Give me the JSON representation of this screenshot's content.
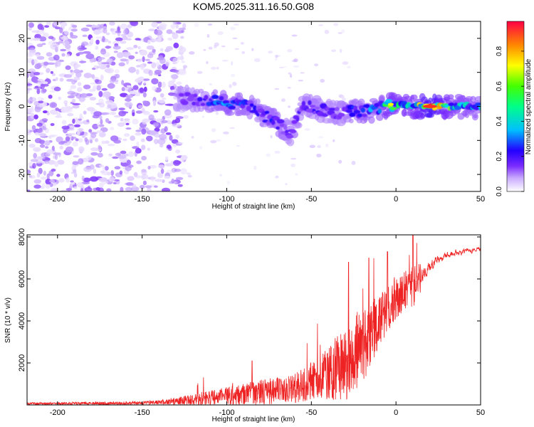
{
  "title": "KOM5.2025.311.16.50.G08",
  "chart_data": [
    {
      "type": "heatmap",
      "name": "spectrogram",
      "xlabel": "Height of straight line (km)",
      "ylabel": "Frequency (Hz)",
      "xlim": [
        -218,
        50
      ],
      "ylim": [
        -25,
        25
      ],
      "xticks": [
        -200,
        -150,
        -100,
        -50,
        0,
        50
      ],
      "yticks": [
        -20,
        -10,
        0,
        10,
        20
      ],
      "colorbar": {
        "label": "Normalized spectral amplitude",
        "range": [
          0,
          0.97
        ],
        "ticks": [
          0.0,
          0.2,
          0.4,
          0.6,
          0.8
        ],
        "tick_labels": [
          "0.0",
          "0.2",
          "0.4",
          "0.6",
          "0.8"
        ],
        "colormap": [
          "#ffffff",
          "#b58cff",
          "#7a2bff",
          "#2200ff",
          "#00d2ff",
          "#00ff44",
          "#ffff00",
          "#ff7700",
          "#ff0033"
        ]
      },
      "ridge": [
        {
          "x": -130,
          "y": 2.5,
          "amp": 0.2
        },
        {
          "x": -115,
          "y": 2.0,
          "amp": 0.3
        },
        {
          "x": -100,
          "y": 1.0,
          "amp": 0.45
        },
        {
          "x": -88,
          "y": 0.5,
          "amp": 0.35
        },
        {
          "x": -80,
          "y": -2.0,
          "amp": 0.3
        },
        {
          "x": -70,
          "y": -5.0,
          "amp": 0.4
        },
        {
          "x": -62,
          "y": -8.0,
          "amp": 0.25
        },
        {
          "x": -55,
          "y": 0.0,
          "amp": 0.3
        },
        {
          "x": -45,
          "y": -1.0,
          "amp": 0.3
        },
        {
          "x": -35,
          "y": -2.0,
          "amp": 0.25
        },
        {
          "x": -25,
          "y": -1.5,
          "amp": 0.35
        },
        {
          "x": -12,
          "y": -1.0,
          "amp": 0.45
        },
        {
          "x": -3,
          "y": 0.5,
          "amp": 0.6
        },
        {
          "x": 10,
          "y": 0.0,
          "amp": 0.55
        },
        {
          "x": 20,
          "y": 0.0,
          "amp": 0.9
        },
        {
          "x": 35,
          "y": 0.0,
          "amp": 0.5
        },
        {
          "x": 50,
          "y": 0.0,
          "amp": 0.45
        }
      ]
    },
    {
      "type": "line",
      "name": "snr",
      "xlabel": "Height of straight line (km)",
      "ylabel": "SNR (10 * v/v)",
      "xlim": [
        -218,
        50
      ],
      "ylim": [
        0,
        8100
      ],
      "xticks": [
        -200,
        -150,
        -100,
        -50,
        0,
        50
      ],
      "yticks": [
        2000,
        4000,
        6000,
        8000
      ],
      "color": "#ee2222",
      "envelope": [
        {
          "x": -218,
          "y": 60,
          "spread": 60
        },
        {
          "x": -160,
          "y": 80,
          "spread": 80
        },
        {
          "x": -140,
          "y": 120,
          "spread": 100
        },
        {
          "x": -120,
          "y": 250,
          "spread": 250
        },
        {
          "x": -100,
          "y": 400,
          "spread": 450
        },
        {
          "x": -80,
          "y": 600,
          "spread": 600
        },
        {
          "x": -60,
          "y": 800,
          "spread": 700
        },
        {
          "x": -45,
          "y": 1300,
          "spread": 1000
        },
        {
          "x": -30,
          "y": 2000,
          "spread": 1800
        },
        {
          "x": -20,
          "y": 2800,
          "spread": 1900
        },
        {
          "x": -10,
          "y": 4000,
          "spread": 1200
        },
        {
          "x": 0,
          "y": 5200,
          "spread": 1100
        },
        {
          "x": 10,
          "y": 5600,
          "spread": 1000
        },
        {
          "x": 20,
          "y": 6700,
          "spread": 450
        },
        {
          "x": 30,
          "y": 7150,
          "spread": 250
        },
        {
          "x": 40,
          "y": 7300,
          "spread": 200
        },
        {
          "x": 50,
          "y": 7400,
          "spread": 180
        }
      ],
      "spikes": [
        {
          "x": -28,
          "y": 6800
        },
        {
          "x": -16,
          "y": 7000
        },
        {
          "x": -5,
          "y": 7300
        },
        {
          "x": 10,
          "y": 8100
        },
        {
          "x": -85,
          "y": 2100
        }
      ]
    }
  ]
}
